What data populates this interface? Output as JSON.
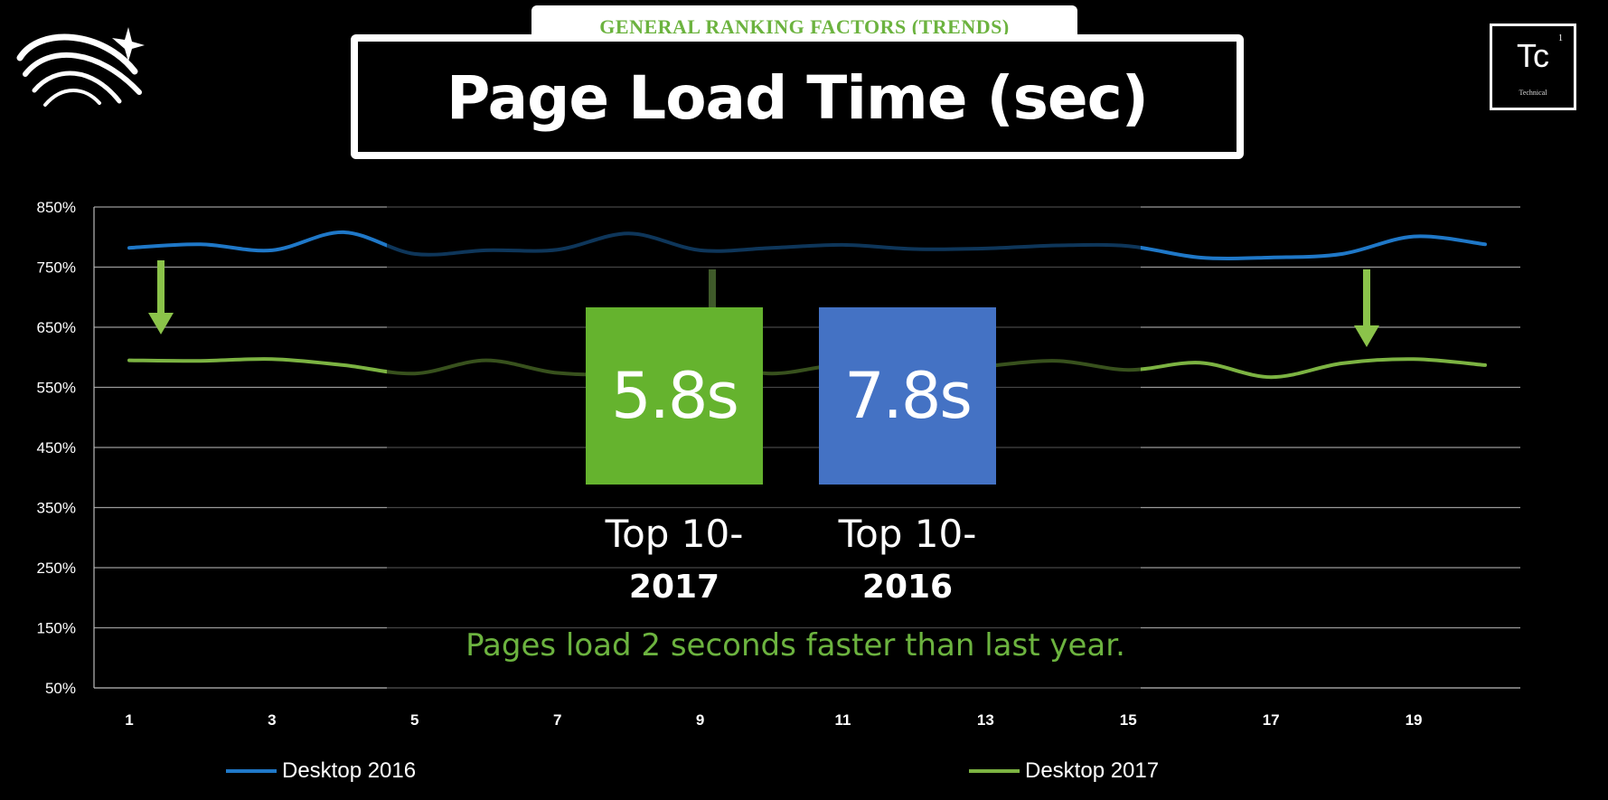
{
  "header": {
    "subtitle": "GENERAL RANKING FACTORS (TRENDS)",
    "title": "Page Load Time (sec)"
  },
  "badge": {
    "symbol": "Tc",
    "number": "1",
    "name": "Technical"
  },
  "stats": [
    {
      "value": "5.8s",
      "caption_line1": "Top 10-",
      "caption_line2": "2017",
      "color": "#65b32e"
    },
    {
      "value": "7.8s",
      "caption_line1": "Top 10-",
      "caption_line2": "2016",
      "color": "#4472c4"
    }
  ],
  "note": "Pages load 2 seconds faster than last year.",
  "colors": {
    "desktop_2016": "#1f78c8",
    "desktop_2017": "#7cb342",
    "accent_green": "#6cb33f"
  },
  "chart_data": {
    "type": "line",
    "x": [
      1,
      2,
      3,
      4,
      5,
      6,
      7,
      8,
      9,
      10,
      11,
      12,
      13,
      14,
      15,
      16,
      17,
      18,
      19,
      20
    ],
    "xticks": [
      1,
      3,
      5,
      7,
      9,
      11,
      13,
      15,
      17,
      19
    ],
    "yticks": [
      "850%",
      "750%",
      "650%",
      "550%",
      "450%",
      "350%",
      "250%",
      "150%",
      "50%"
    ],
    "ylim": [
      50,
      850
    ],
    "grid": true,
    "legend_position": "bottom",
    "series": [
      {
        "name": "Desktop 2016",
        "values": [
          782,
          788,
          778,
          808,
          772,
          778,
          779,
          806,
          778,
          782,
          787,
          780,
          781,
          786,
          785,
          766,
          766,
          772,
          801,
          788
        ]
      },
      {
        "name": "Desktop 2017",
        "values": [
          595,
          594,
          597,
          587,
          573,
          595,
          574,
          573,
          589,
          573,
          587,
          573,
          585,
          594,
          579,
          591,
          567,
          590,
          597,
          587
        ]
      }
    ]
  }
}
